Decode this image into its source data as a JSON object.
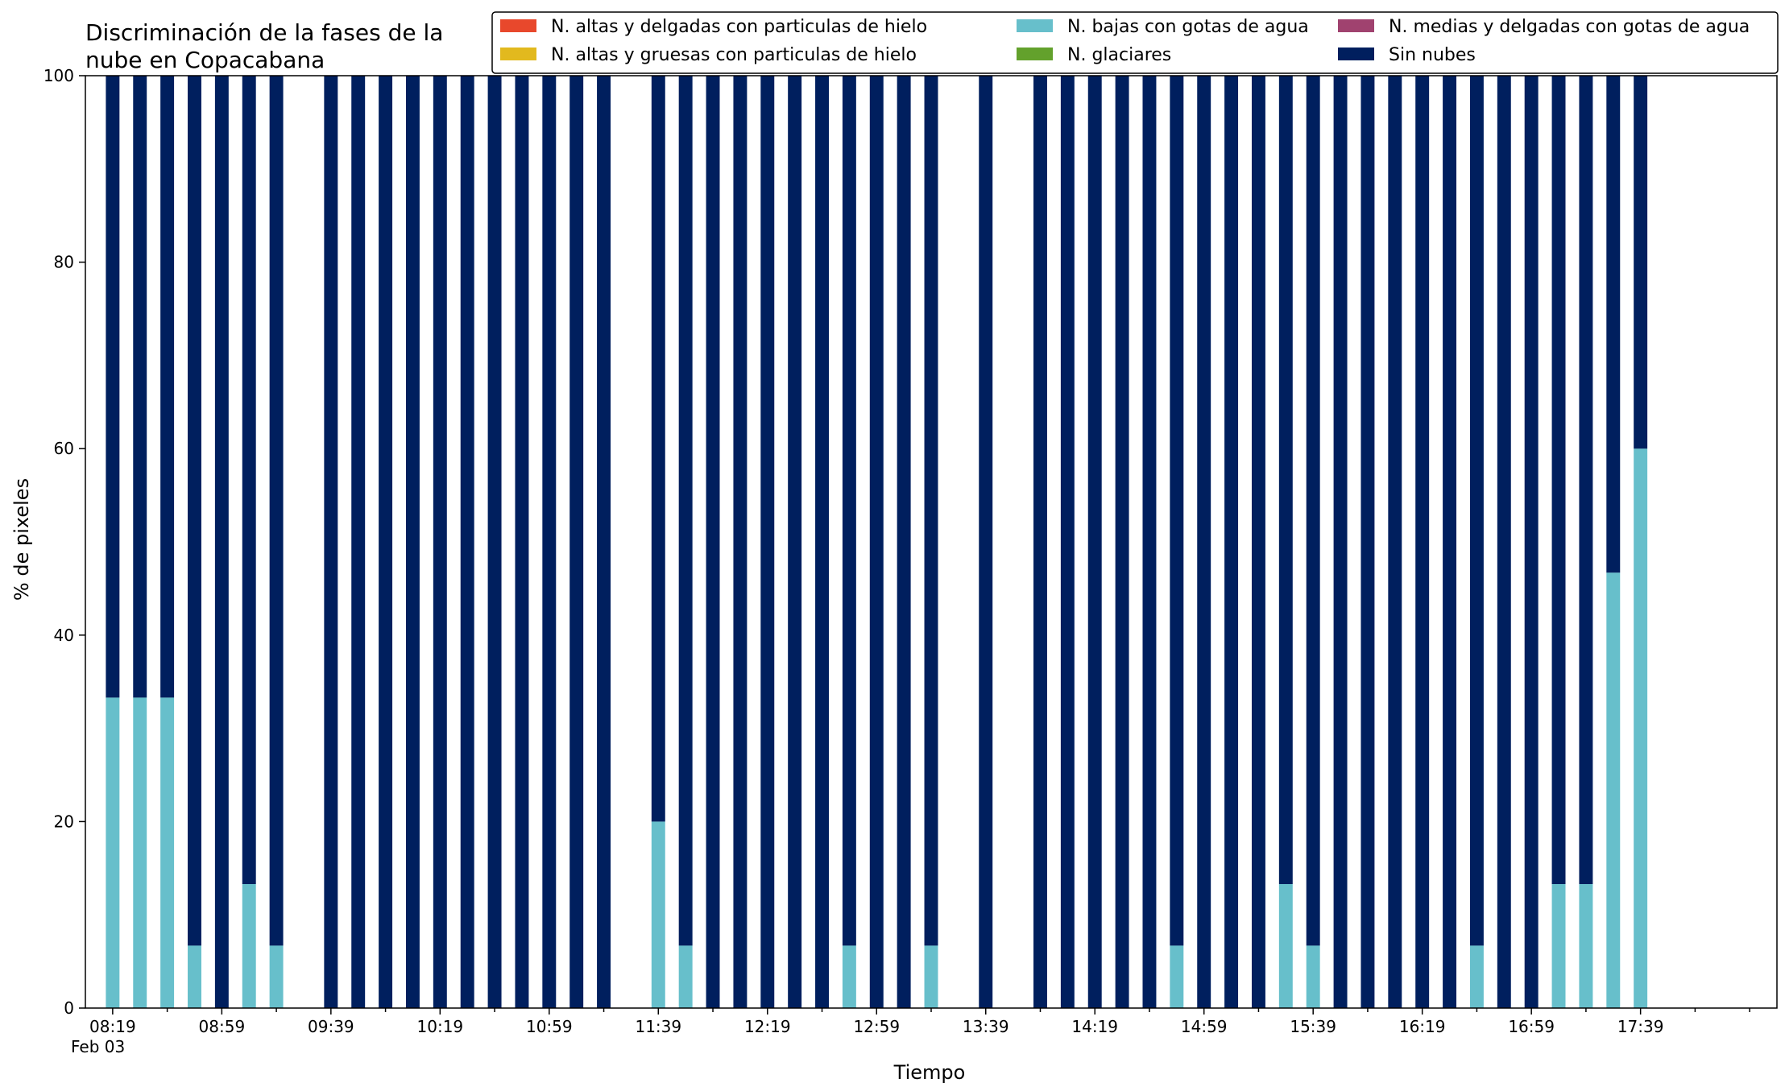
{
  "chart_data": {
    "type": "bar",
    "stacked": true,
    "title": "Discriminación de la fases de la nube en Copacabana",
    "title_lines": [
      "Discriminación de la fases de la",
      "nube en Copacabana"
    ],
    "xlabel": "Tiempo",
    "ylabel": "% de pixeles",
    "ylim": [
      0,
      100
    ],
    "yticks": [
      0,
      20,
      40,
      60,
      80,
      100
    ],
    "xlim": [
      "08:09",
      "18:29"
    ],
    "x_tick_labels": [
      "08:19",
      "08:59",
      "09:39",
      "10:19",
      "10:59",
      "11:39",
      "12:19",
      "12:59",
      "13:39",
      "14:19",
      "14:59",
      "15:39",
      "16:19",
      "16:59",
      "17:39"
    ],
    "x_date_label": "Feb 03",
    "legend_position": "top-right",
    "legend_columns": 3,
    "grid": false,
    "x": [
      "08:19",
      "08:29",
      "08:39",
      "08:49",
      "08:59",
      "09:09",
      "09:19",
      "09:29",
      "09:39",
      "09:49",
      "09:59",
      "10:09",
      "10:19",
      "10:29",
      "10:39",
      "10:49",
      "10:59",
      "11:09",
      "11:19",
      "11:29",
      "11:39",
      "11:49",
      "11:59",
      "12:09",
      "12:19",
      "12:29",
      "12:39",
      "12:49",
      "12:59",
      "13:09",
      "13:19",
      "13:29",
      "13:39",
      "13:49",
      "13:59",
      "14:09",
      "14:19",
      "14:29",
      "14:39",
      "14:49",
      "14:59",
      "15:09",
      "15:19",
      "15:29",
      "15:39",
      "15:49",
      "15:59",
      "16:09",
      "16:19",
      "16:29",
      "16:39",
      "16:49",
      "16:59",
      "17:09",
      "17:19",
      "17:29",
      "17:39",
      "17:49",
      "17:59"
    ],
    "series": [
      {
        "name": "N. altas y delgadas con particulas de hielo",
        "color": "#e8482c",
        "values": [
          0,
          0,
          0,
          0,
          0,
          0,
          0,
          null,
          0,
          0,
          0,
          0,
          0,
          0,
          0,
          0,
          0,
          0,
          0,
          null,
          0,
          0,
          0,
          0,
          0,
          0,
          0,
          0,
          0,
          0,
          0,
          null,
          0,
          null,
          0,
          0,
          0,
          0,
          0,
          0,
          0,
          0,
          0,
          0,
          0,
          0,
          0,
          0,
          0,
          0,
          0,
          0,
          0,
          0,
          0,
          0,
          0,
          0,
          0
        ]
      },
      {
        "name": "N. altas y gruesas con particulas de hielo",
        "color": "#e2b91e",
        "values": [
          0,
          0,
          0,
          0,
          0,
          0,
          0,
          null,
          0,
          0,
          0,
          0,
          0,
          0,
          0,
          0,
          0,
          0,
          0,
          null,
          0,
          0,
          0,
          0,
          0,
          0,
          0,
          0,
          0,
          0,
          0,
          null,
          0,
          null,
          0,
          0,
          0,
          0,
          0,
          0,
          0,
          0,
          0,
          0,
          0,
          0,
          0,
          0,
          0,
          0,
          0,
          0,
          0,
          0,
          0,
          0,
          0,
          0,
          0
        ]
      },
      {
        "name": "N. bajas con gotas de agua",
        "color": "#67bfcb",
        "values": [
          33.3,
          33.3,
          33.3,
          6.7,
          0,
          13.3,
          6.7,
          null,
          0,
          0,
          0,
          0,
          0,
          0,
          0,
          0,
          0,
          0,
          0,
          null,
          20,
          6.7,
          0,
          0,
          0,
          0,
          0,
          6.7,
          0,
          0,
          6.7,
          null,
          0,
          null,
          0,
          0,
          0,
          0,
          0,
          6.7,
          0,
          0,
          0,
          13.3,
          6.7,
          0,
          0,
          0,
          0,
          0,
          6.7,
          0,
          0,
          13.3,
          13.3,
          46.7,
          60,
          0,
          0
        ]
      },
      {
        "name": "N. glaciares",
        "color": "#63a12c",
        "values": [
          0,
          0,
          0,
          0,
          0,
          0,
          0,
          null,
          0,
          0,
          0,
          0,
          0,
          0,
          0,
          0,
          0,
          0,
          0,
          null,
          0,
          0,
          0,
          0,
          0,
          0,
          0,
          0,
          0,
          0,
          0,
          null,
          0,
          null,
          0,
          0,
          0,
          0,
          0,
          0,
          0,
          0,
          0,
          0,
          0,
          0,
          0,
          0,
          0,
          0,
          0,
          0,
          0,
          0,
          0,
          0,
          0,
          0,
          0
        ]
      },
      {
        "name": "N. medias y delgadas con gotas de agua",
        "color": "#a0426f",
        "values": [
          0,
          0,
          0,
          0,
          0,
          0,
          0,
          null,
          0,
          0,
          0,
          0,
          0,
          0,
          0,
          0,
          0,
          0,
          0,
          null,
          0,
          0,
          0,
          0,
          0,
          0,
          0,
          0,
          0,
          0,
          0,
          null,
          0,
          null,
          0,
          0,
          0,
          0,
          0,
          0,
          0,
          0,
          0,
          0,
          0,
          0,
          0,
          0,
          0,
          0,
          0,
          0,
          0,
          0,
          0,
          0,
          0,
          0,
          0
        ]
      },
      {
        "name": "Sin nubes",
        "color": "#001f5e",
        "values": [
          66.7,
          66.7,
          66.7,
          93.3,
          100,
          86.7,
          93.3,
          null,
          100,
          100,
          100,
          100,
          100,
          100,
          100,
          100,
          100,
          100,
          100,
          null,
          80,
          93.3,
          100,
          100,
          100,
          100,
          100,
          93.3,
          100,
          100,
          93.3,
          null,
          100,
          null,
          100,
          100,
          100,
          100,
          100,
          93.3,
          100,
          100,
          100,
          86.7,
          93.3,
          100,
          100,
          100,
          100,
          100,
          93.3,
          100,
          100,
          86.7,
          86.7,
          53.3,
          40,
          null,
          null
        ]
      }
    ]
  }
}
